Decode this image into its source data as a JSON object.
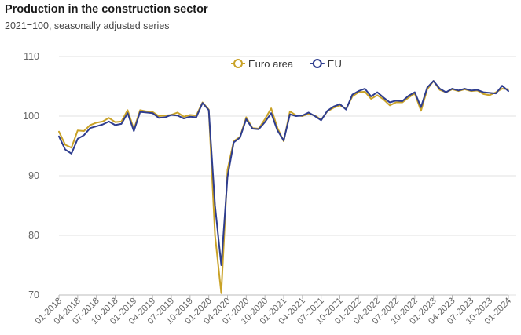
{
  "chart_data": {
    "type": "line",
    "title": "Production in the construction sector",
    "subtitle": "2021=100, seasonally adjusted series",
    "xlabel": "",
    "ylabel": "",
    "ylim": [
      70,
      110
    ],
    "yticks": [
      70,
      80,
      90,
      100,
      110
    ],
    "grid": true,
    "legend_position": "top",
    "x": [
      "01-2018",
      "02-2018",
      "03-2018",
      "04-2018",
      "05-2018",
      "06-2018",
      "07-2018",
      "08-2018",
      "09-2018",
      "10-2018",
      "11-2018",
      "12-2018",
      "01-2019",
      "02-2019",
      "03-2019",
      "04-2019",
      "05-2019",
      "06-2019",
      "07-2019",
      "08-2019",
      "09-2019",
      "10-2019",
      "11-2019",
      "12-2019",
      "01-2020",
      "02-2020",
      "03-2020",
      "04-2020",
      "05-2020",
      "06-2020",
      "07-2020",
      "08-2020",
      "09-2020",
      "10-2020",
      "11-2020",
      "12-2020",
      "01-2021",
      "02-2021",
      "03-2021",
      "04-2021",
      "05-2021",
      "06-2021",
      "07-2021",
      "08-2021",
      "09-2021",
      "10-2021",
      "11-2021",
      "12-2021",
      "01-2022",
      "02-2022",
      "03-2022",
      "04-2022",
      "05-2022",
      "06-2022",
      "07-2022",
      "08-2022",
      "09-2022",
      "10-2022",
      "11-2022",
      "12-2022",
      "01-2023",
      "02-2023",
      "03-2023",
      "04-2023",
      "05-2023",
      "06-2023",
      "07-2023",
      "08-2023",
      "09-2023",
      "10-2023",
      "11-2023",
      "12-2023",
      "01-2024"
    ],
    "xtick_labels": [
      "01-2018",
      "04-2018",
      "07-2018",
      "10-2018",
      "01-2019",
      "04-2019",
      "07-2019",
      "10-2019",
      "01-2020",
      "04-2020",
      "07-2020",
      "10-2020",
      "01-2021",
      "04-2021",
      "07-2021",
      "10-2021",
      "01-2022",
      "04-2022",
      "07-2022",
      "10-2022",
      "01-2023",
      "04-2023",
      "07-2023",
      "10-2023",
      "01-2024"
    ],
    "series": [
      {
        "name": "Euro area",
        "color": "#c9a227",
        "values": [
          97.4,
          95.2,
          94.7,
          97.6,
          97.5,
          98.5,
          98.9,
          99.1,
          99.7,
          99.0,
          99.1,
          101.0,
          97.8,
          101.0,
          100.8,
          100.7,
          100.0,
          100.1,
          100.2,
          100.6,
          99.9,
          100.2,
          100.1,
          102.3,
          101.1,
          80.0,
          70.3,
          91.0,
          95.8,
          96.5,
          99.8,
          98.0,
          97.9,
          99.5,
          101.3,
          98.0,
          95.8,
          100.8,
          100.1,
          100.0,
          100.4,
          100.1,
          99.4,
          100.8,
          101.4,
          101.8,
          101.2,
          103.3,
          104.0,
          104.1,
          102.9,
          103.5,
          102.8,
          101.8,
          102.3,
          102.3,
          103.1,
          103.8,
          100.9,
          104.5,
          105.9,
          104.4,
          104.0,
          104.5,
          104.2,
          104.5,
          104.2,
          104.3,
          103.7,
          103.5,
          104.0,
          104.6,
          104.5
        ]
      },
      {
        "name": "EU",
        "color": "#2e3d8f",
        "values": [
          96.6,
          94.4,
          93.7,
          96.2,
          96.8,
          98.0,
          98.3,
          98.6,
          99.1,
          98.5,
          98.7,
          100.5,
          97.5,
          100.7,
          100.6,
          100.5,
          99.7,
          99.8,
          100.2,
          100.1,
          99.6,
          99.9,
          99.8,
          102.2,
          101.0,
          85.0,
          75.0,
          89.8,
          95.6,
          96.4,
          99.5,
          97.9,
          97.8,
          99.0,
          100.5,
          97.6,
          95.9,
          100.3,
          100.0,
          100.1,
          100.6,
          100.0,
          99.3,
          100.9,
          101.6,
          102.0,
          101.1,
          103.6,
          104.2,
          104.6,
          103.3,
          104.0,
          103.1,
          102.3,
          102.6,
          102.5,
          103.4,
          104.0,
          101.5,
          104.8,
          105.9,
          104.6,
          104.0,
          104.6,
          104.3,
          104.6,
          104.3,
          104.4,
          104.0,
          103.9,
          103.8,
          105.1,
          104.2
        ]
      }
    ]
  }
}
